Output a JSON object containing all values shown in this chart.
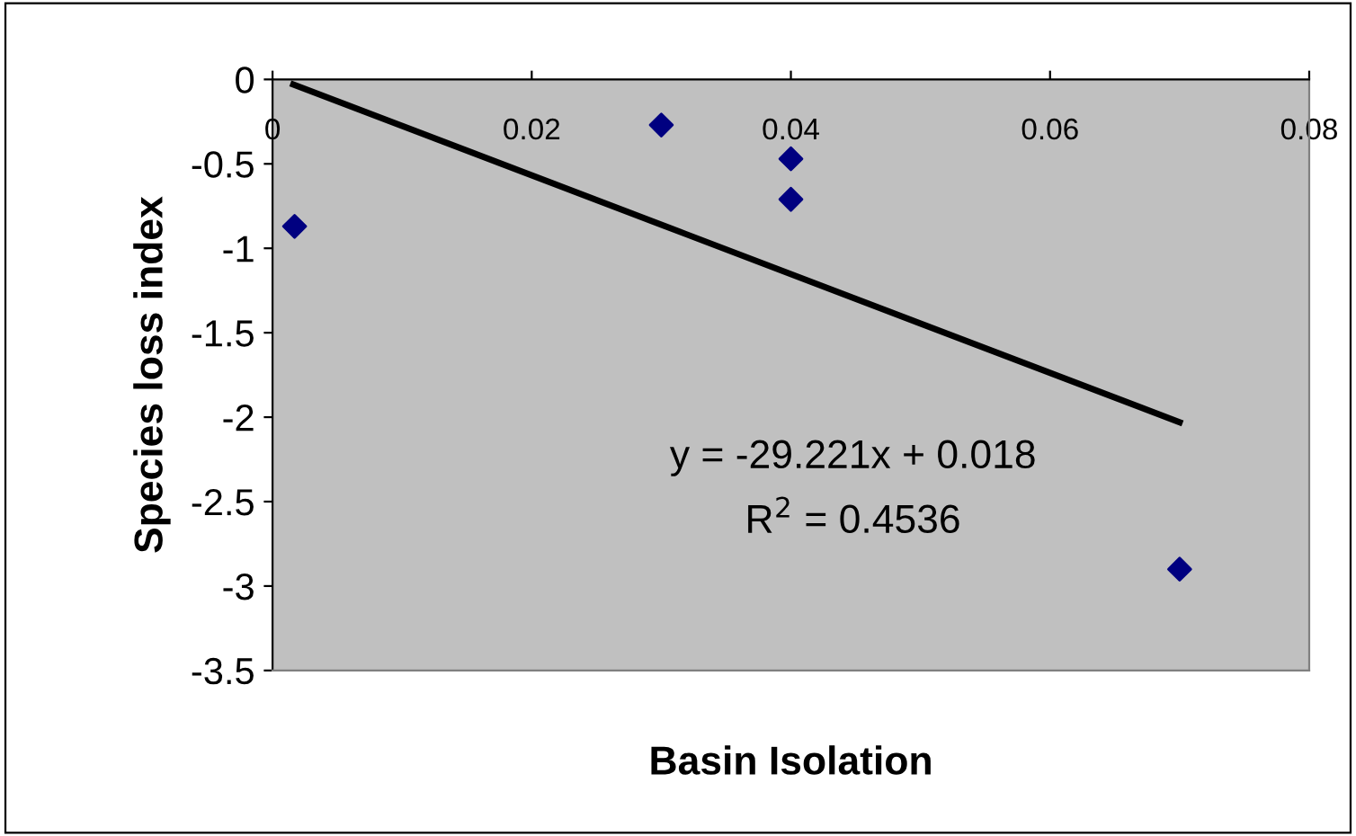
{
  "chart_data": {
    "type": "scatter",
    "xlabel": "Basin Isolation",
    "ylabel": "Species loss index",
    "series": [
      {
        "color": "#000080",
        "marker": "diamond",
        "x": [
          0.0017,
          0.03,
          0.04,
          0.04,
          0.07
        ],
        "values": [
          -0.87,
          -0.27,
          -0.47,
          -0.71,
          -2.9
        ]
      },
      {
        "type": "line",
        "color": "#000000",
        "marker": "none",
        "line_style": "solid",
        "x": [
          0.0016,
          0.07
        ],
        "values": [
          -0.03,
          -2.03
        ]
      }
    ],
    "xlim": [
      0,
      0.08
    ],
    "xticks": [
      0,
      0.02,
      0.04,
      0.06,
      0.08
    ],
    "ylim": [
      -3.5,
      0
    ],
    "yticks": [
      0,
      -0.5,
      -1,
      -1.5,
      -2,
      -2.5,
      -3,
      -3.5
    ],
    "annotations": [
      "y = -29.221x + 0.018",
      "R$^{2}$ = 0.4536"
    ],
    "grid": false,
    "legend": false
  }
}
